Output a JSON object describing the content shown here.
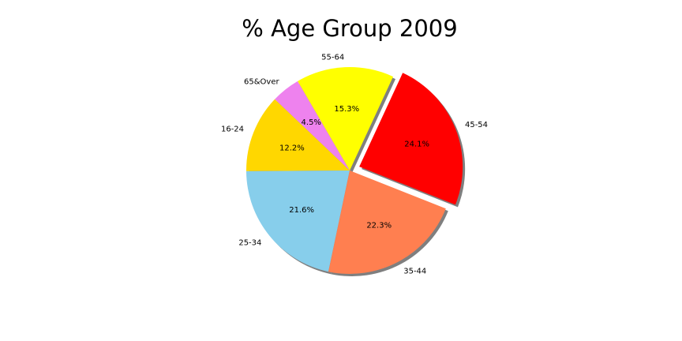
{
  "chart_data": {
    "type": "pie",
    "title": "% Age Group 2009",
    "slices": [
      {
        "label": "45-54",
        "value": 24.1,
        "pct_label": "24.1%",
        "color": "#ff0000",
        "explode": true
      },
      {
        "label": "55-64",
        "value": 15.3,
        "pct_label": "15.3%",
        "color": "#ffff00",
        "explode": false
      },
      {
        "label": "65&Over",
        "value": 4.5,
        "pct_label": "4.5%",
        "color": "#ee82ee",
        "explode": false
      },
      {
        "label": "16-24",
        "value": 12.2,
        "pct_label": "12.2%",
        "color": "#ffd700",
        "explode": false
      },
      {
        "label": "25-34",
        "value": 21.6,
        "pct_label": "21.6%",
        "color": "#87ceeb",
        "explode": false
      },
      {
        "label": "35-44",
        "value": 22.3,
        "pct_label": "22.3%",
        "color": "#ff7f50",
        "explode": false
      }
    ],
    "start_angle_deg": -21.6,
    "direction": "counterclockwise",
    "shadow": true,
    "legend": "none"
  }
}
